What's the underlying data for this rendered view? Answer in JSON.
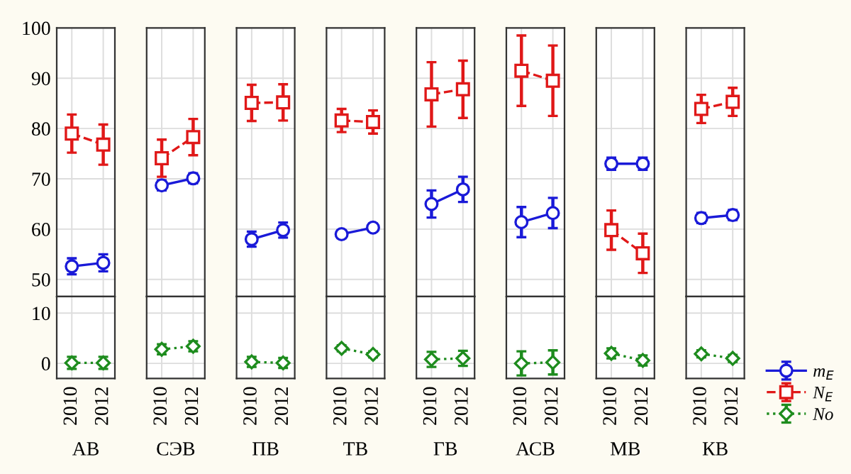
{
  "chart_data": [
    {
      "type": "line",
      "categories": [
        "2010",
        "2012"
      ],
      "ylim": [
        46.6,
        100
      ],
      "yticks": [
        50,
        60,
        70,
        80,
        90,
        100
      ],
      "grid": true,
      "tick_labels": "y",
      "legend": "bottom right",
      "series": [
        {
          "name": "m$_{E}$",
          "color": "#1a1ad8",
          "marker": "circle",
          "line_style": "solid",
          "values": [
            52.6,
            53.3
          ],
          "errors": [
            1.6,
            1.7
          ]
        },
        {
          "name": "N$_{E}$",
          "color": "#e01818",
          "marker": "square",
          "line_style": "dashed",
          "values": [
            79.0,
            76.8
          ],
          "errors": [
            3.8,
            4.0
          ]
        }
      ]
    },
    {
      "type": "line",
      "categories": [
        "2010",
        "2012"
      ],
      "xlabel": "АВ",
      "ylim": [
        -3,
        13.3
      ],
      "yticks": [
        0,
        10
      ],
      "grid": true,
      "series": [
        {
          "name": "No",
          "color": "#1e8c1e",
          "marker": "diamond",
          "line_style": "dotted",
          "values": [
            0.1,
            0.1
          ],
          "errors": [
            1.2,
            1.2
          ]
        }
      ]
    },
    {
      "type": "line",
      "categories": [
        "2010",
        "2012"
      ],
      "ylim": [
        46.6,
        100
      ],
      "yticks": [
        50,
        60,
        70,
        80,
        90,
        100
      ],
      "grid": true,
      "tick_labels": false,
      "series": [
        {
          "name": "m$_{E}$",
          "color": "#1a1ad8",
          "marker": "circle",
          "line_style": "solid",
          "values": [
            68.7,
            70.1
          ],
          "errors": [
            1.0,
            1.0
          ]
        },
        {
          "name": "N$_{E}$",
          "color": "#e01818",
          "marker": "square",
          "line_style": "dashed",
          "values": [
            74.1,
            78.3
          ],
          "errors": [
            3.7,
            3.6
          ]
        }
      ]
    },
    {
      "type": "line",
      "categories": [
        "2010",
        "2012"
      ],
      "xlabel": "СЭВ",
      "ylim": [
        -3,
        13.3
      ],
      "yticks": [
        0,
        10
      ],
      "grid": true,
      "tick_labels": "x",
      "series": [
        {
          "name": "No",
          "color": "#1e8c1e",
          "marker": "diamond",
          "line_style": "dotted",
          "values": [
            2.8,
            3.4
          ],
          "errors": [
            1.0,
            1.0
          ]
        }
      ]
    },
    {
      "type": "line",
      "categories": [
        "2010",
        "2012"
      ],
      "ylim": [
        46.6,
        100
      ],
      "yticks": [
        50,
        60,
        70,
        80,
        90,
        100
      ],
      "grid": true,
      "tick_labels": false,
      "series": [
        {
          "name": "m$_{E}$",
          "color": "#1a1ad8",
          "marker": "circle",
          "line_style": "solid",
          "values": [
            58.0,
            59.8
          ],
          "errors": [
            1.5,
            1.5
          ]
        },
        {
          "name": "N$_{E}$",
          "color": "#e01818",
          "marker": "square",
          "line_style": "dashed",
          "values": [
            85.1,
            85.2
          ],
          "errors": [
            3.6,
            3.6
          ]
        }
      ]
    },
    {
      "type": "line",
      "categories": [
        "2010",
        "2012"
      ],
      "xlabel": "ПВ",
      "ylim": [
        -3,
        13.3
      ],
      "yticks": [
        0,
        10
      ],
      "grid": true,
      "tick_labels": "x",
      "series": [
        {
          "name": "No",
          "color": "#1e8c1e",
          "marker": "diamond",
          "line_style": "dotted",
          "values": [
            0.3,
            0.1
          ],
          "errors": [
            1.0,
            1.0
          ]
        }
      ]
    },
    {
      "type": "line",
      "categories": [
        "2010",
        "2012"
      ],
      "ylim": [
        46.6,
        100
      ],
      "yticks": [
        50,
        60,
        70,
        80,
        90,
        100
      ],
      "grid": true,
      "tick_labels": false,
      "series": [
        {
          "name": "m$_{E}$",
          "color": "#1a1ad8",
          "marker": "circle",
          "line_style": "solid",
          "values": [
            59.0,
            60.3
          ],
          "errors": [
            0.8,
            0.8
          ]
        },
        {
          "name": "N$_{E}$",
          "color": "#e01818",
          "marker": "square",
          "line_style": "dashed",
          "values": [
            81.6,
            81.3
          ],
          "errors": [
            2.3,
            2.3
          ]
        }
      ]
    },
    {
      "type": "line",
      "categories": [
        "2010",
        "2012"
      ],
      "xlabel": "ТВ",
      "ylim": [
        -3,
        13.3
      ],
      "yticks": [
        0,
        10
      ],
      "grid": true,
      "tick_labels": "x",
      "series": [
        {
          "name": "No",
          "color": "#1e8c1e",
          "marker": "diamond",
          "line_style": "dotted",
          "values": [
            3.0,
            1.8
          ],
          "errors": [
            0.6,
            0.6
          ]
        }
      ]
    },
    {
      "type": "line",
      "categories": [
        "2010",
        "2012"
      ],
      "ylim": [
        46.6,
        100
      ],
      "yticks": [
        50,
        60,
        70,
        80,
        90,
        100
      ],
      "grid": true,
      "tick_labels": false,
      "series": [
        {
          "name": "m$_{E}$",
          "color": "#1a1ad8",
          "marker": "circle",
          "line_style": "solid",
          "values": [
            65.0,
            67.9
          ],
          "errors": [
            2.7,
            2.5
          ]
        },
        {
          "name": "N$_{E}$",
          "color": "#e01818",
          "marker": "square",
          "line_style": "dashed",
          "values": [
            86.8,
            87.8
          ],
          "errors": [
            6.4,
            5.7
          ]
        }
      ]
    },
    {
      "type": "line",
      "categories": [
        "2010",
        "2012"
      ],
      "xlabel": "ГВ",
      "ylim": [
        -3,
        13.3
      ],
      "yticks": [
        0,
        10
      ],
      "grid": true,
      "tick_labels": "x",
      "series": [
        {
          "name": "No",
          "color": "#1e8c1e",
          "marker": "diamond",
          "line_style": "dotted",
          "values": [
            0.8,
            1.0
          ],
          "errors": [
            1.5,
            1.5
          ]
        }
      ]
    },
    {
      "type": "line",
      "categories": [
        "2010",
        "2012"
      ],
      "ylim": [
        46.6,
        100
      ],
      "yticks": [
        50,
        60,
        70,
        80,
        90,
        100
      ],
      "grid": true,
      "tick_labels": false,
      "series": [
        {
          "name": "m$_{E}$",
          "color": "#1a1ad8",
          "marker": "circle",
          "line_style": "solid",
          "values": [
            61.4,
            63.2
          ],
          "errors": [
            3.0,
            3.0
          ]
        },
        {
          "name": "N$_{E}$",
          "color": "#e01818",
          "marker": "square",
          "line_style": "dashed",
          "values": [
            91.5,
            89.5
          ],
          "errors": [
            7.0,
            7.0
          ]
        }
      ]
    },
    {
      "type": "line",
      "categories": [
        "2010",
        "2012"
      ],
      "xlabel": "АСВ",
      "ylim": [
        -3,
        13.3
      ],
      "yticks": [
        0,
        10
      ],
      "grid": true,
      "tick_labels": "x",
      "series": [
        {
          "name": "No",
          "color": "#1e8c1e",
          "marker": "diamond",
          "line_style": "dotted",
          "values": [
            0.0,
            0.2
          ],
          "errors": [
            2.4,
            2.4
          ]
        }
      ]
    },
    {
      "type": "line",
      "categories": [
        "2010",
        "2012"
      ],
      "ylim": [
        46.6,
        100
      ],
      "yticks": [
        50,
        60,
        70,
        80,
        90,
        100
      ],
      "grid": true,
      "tick_labels": false,
      "series": [
        {
          "name": "m$_{E}$",
          "color": "#1a1ad8",
          "marker": "circle",
          "line_style": "solid",
          "values": [
            73.0,
            73.0
          ],
          "errors": [
            1.2,
            1.2
          ]
        },
        {
          "name": "N$_{E}$",
          "color": "#e01818",
          "marker": "square",
          "line_style": "dashed",
          "values": [
            59.8,
            55.2
          ],
          "errors": [
            3.9,
            3.9
          ]
        }
      ]
    },
    {
      "type": "line",
      "categories": [
        "2010",
        "2012"
      ],
      "xlabel": "МВ",
      "ylim": [
        -3,
        13.3
      ],
      "yticks": [
        0,
        10
      ],
      "grid": true,
      "tick_labels": "x",
      "series": [
        {
          "name": "No",
          "color": "#1e8c1e",
          "marker": "diamond",
          "line_style": "dotted",
          "values": [
            2.0,
            0.6
          ],
          "errors": [
            1.0,
            1.0
          ]
        }
      ]
    },
    {
      "type": "line",
      "categories": [
        "2010",
        "2012"
      ],
      "ylim": [
        46.6,
        100
      ],
      "yticks": [
        50,
        60,
        70,
        80,
        90,
        100
      ],
      "grid": true,
      "tick_labels": false,
      "series": [
        {
          "name": "m$_{E}$",
          "color": "#1a1ad8",
          "marker": "circle",
          "line_style": "solid",
          "values": [
            62.2,
            62.8
          ],
          "errors": [
            1.0,
            1.0
          ]
        },
        {
          "name": "N$_{E}$",
          "color": "#e01818",
          "marker": "square",
          "line_style": "dashed",
          "values": [
            83.9,
            85.3
          ],
          "errors": [
            2.8,
            2.8
          ]
        }
      ]
    },
    {
      "type": "line",
      "categories": [
        "2010",
        "2012"
      ],
      "xlabel": "КВ",
      "ylim": [
        -3,
        13.3
      ],
      "yticks": [
        0,
        10
      ],
      "grid": true,
      "tick_labels": "x",
      "legend": "bottom right",
      "series": [
        {
          "name": "No",
          "color": "#1e8c1e",
          "marker": "diamond",
          "line_style": "dotted",
          "values": [
            1.9,
            1.0
          ],
          "errors": [
            0.7,
            0.7
          ]
        }
      ]
    }
  ]
}
